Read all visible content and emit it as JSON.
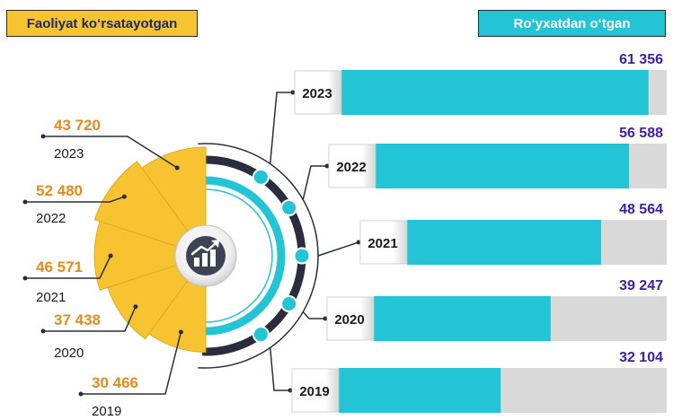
{
  "header_left": "Faoliyat ko‘rsatayotgan",
  "header_right": "Ro‘yxatdan o‘tgan",
  "colors": {
    "left_accent": "#f7c331",
    "left_value_text": "#e8891b",
    "right_accent": "#22c4d6",
    "right_value_text": "#3e1ea6",
    "track": "#d9d9d9"
  },
  "icon": "growth-chart-icon",
  "chart_data": [
    {
      "type": "pie",
      "title": "Faoliyat ko‘rsatayotgan",
      "categories": [
        "2023",
        "2022",
        "2021",
        "2020",
        "2019"
      ],
      "values": [
        43720,
        52480,
        46571,
        37438,
        30466
      ],
      "value_labels": [
        "43 720",
        "52 480",
        "46 571",
        "37 438",
        "30 466"
      ]
    },
    {
      "type": "bar",
      "orientation": "horizontal",
      "title": "Ro‘yxatdan o‘tgan",
      "categories": [
        "2023",
        "2022",
        "2021",
        "2020",
        "2019"
      ],
      "values": [
        61356,
        56588,
        48564,
        39247,
        32104
      ],
      "value_labels": [
        "61 356",
        "56 588",
        "48 564",
        "39 247",
        "32 104"
      ]
    }
  ]
}
